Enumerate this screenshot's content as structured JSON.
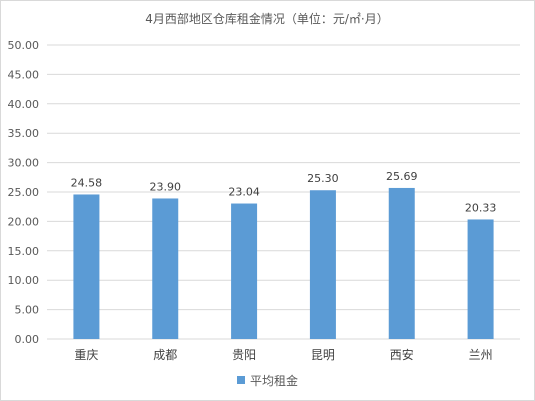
{
  "chart_data": {
    "type": "bar",
    "title": "4月西部地区仓库租金情况（单位：元/㎡·月）",
    "categories": [
      "重庆",
      "成都",
      "贵阳",
      "昆明",
      "西安",
      "兰州"
    ],
    "series": [
      {
        "name": "平均租金",
        "values": [
          24.58,
          23.9,
          23.04,
          25.3,
          25.69,
          20.33
        ],
        "color": "#5b9bd5"
      }
    ],
    "ylim": [
      0,
      50
    ],
    "yticks": [
      "0.00",
      "5.00",
      "10.00",
      "15.00",
      "20.00",
      "25.00",
      "30.00",
      "35.00",
      "40.00",
      "45.00",
      "50.00"
    ],
    "data_labels": [
      "24.58",
      "23.90",
      "23.04",
      "25.30",
      "25.69",
      "20.33"
    ],
    "grid": true,
    "legend_position": "bottom"
  }
}
